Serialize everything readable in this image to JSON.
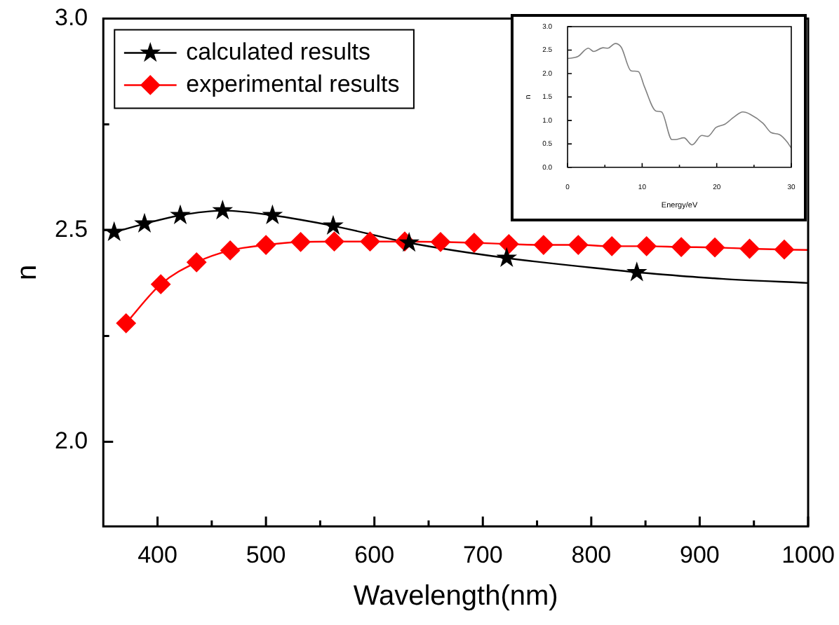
{
  "chart_data": [
    {
      "type": "line",
      "xlabel": "Wavelength(nm)",
      "ylabel": "n",
      "xlim": [
        350,
        1000
      ],
      "ylim": [
        1.8,
        3.0
      ],
      "xticks": [
        400,
        {
          "value": 450,
          "label": null
        },
        500,
        {
          "value": 550,
          "label": null
        },
        600,
        {
          "value": 650,
          "label": null
        },
        700,
        {
          "value": 750,
          "label": null
        },
        800,
        {
          "value": 850,
          "label": null
        },
        900,
        {
          "value": 950,
          "label": null
        },
        1000
      ],
      "yticks": [
        {
          "value": 2,
          "label": "2.0"
        },
        {
          "value": 2.25,
          "label": null
        },
        {
          "value": 2.5,
          "label": "2.5"
        },
        {
          "value": 2.75,
          "label": null
        },
        {
          "value": 3,
          "label": "3.0"
        }
      ],
      "legend": "top left",
      "line_style": "solid",
      "series": [
        {
          "name": "calculated results",
          "color": "#000000",
          "marker": "star",
          "x": [
            360,
            388,
            421,
            460,
            506,
            562,
            632,
            722,
            842
          ],
          "values": [
            2.495,
            2.515,
            2.535,
            2.546,
            2.535,
            2.51,
            2.47,
            2.434,
            2.4
          ]
        },
        {
          "name": "experimental results",
          "color": "#ff0000",
          "marker": "diamond",
          "x": [
            371,
            403,
            436,
            467,
            500,
            532,
            563,
            596,
            628,
            661,
            692,
            724,
            756,
            788,
            819,
            851,
            883,
            914,
            946,
            978
          ],
          "values": [
            2.28,
            2.372,
            2.424,
            2.452,
            2.465,
            2.472,
            2.473,
            2.473,
            2.473,
            2.472,
            2.47,
            2.467,
            2.465,
            2.465,
            2.462,
            2.462,
            2.46,
            2.459,
            2.456,
            2.454
          ]
        },
        {
          "color": "#000000",
          "marker": "none",
          "x": [
            842,
            920,
            1000
          ],
          "values": [
            2.4,
            2.385,
            2.375
          ]
        },
        {
          "color": "#ff0000",
          "marker": "none",
          "x": [
            978,
            1000
          ],
          "values": [
            2.454,
            2.453
          ]
        }
      ]
    },
    {
      "type": "line",
      "xlabel": "Energy/eV",
      "ylabel": "n",
      "xlim": [
        0,
        30
      ],
      "ylim": [
        0,
        3
      ],
      "xticks": [
        0,
        {
          "value": 5,
          "label": null
        },
        10,
        {
          "value": 15,
          "label": null
        },
        20,
        {
          "value": 25,
          "label": null
        },
        30
      ],
      "yticks": [
        {
          "value": 0,
          "label": "0.0"
        },
        0.5,
        {
          "value": 1,
          "label": "1.0"
        },
        1.5,
        {
          "value": 2,
          "label": "2.0"
        },
        2.5,
        {
          "value": 3,
          "label": "3.0"
        }
      ],
      "line_style": "solid",
      "series": [
        {
          "color": "#808080",
          "marker": "none",
          "x": [
            0,
            1.36,
            2.78,
            3.5,
            4.75,
            5.4,
            6.4,
            7.2,
            8.5,
            9.5,
            10.3,
            11.85,
            12.6,
            14.0,
            14.4,
            15.6,
            16.7,
            18.0,
            18.8,
            19.9,
            21.1,
            22.3,
            23.5,
            24.5,
            26.2,
            27.3,
            28.4,
            29.4,
            30
          ],
          "values": [
            2.32,
            2.36,
            2.54,
            2.47,
            2.55,
            2.54,
            2.64,
            2.56,
            2.06,
            2.04,
            1.72,
            1.2,
            1.18,
            0.59,
            0.59,
            0.63,
            0.48,
            0.68,
            0.66,
            0.85,
            0.92,
            1.07,
            1.18,
            1.13,
            0.94,
            0.74,
            0.7,
            0.55,
            0.41
          ]
        }
      ]
    }
  ]
}
